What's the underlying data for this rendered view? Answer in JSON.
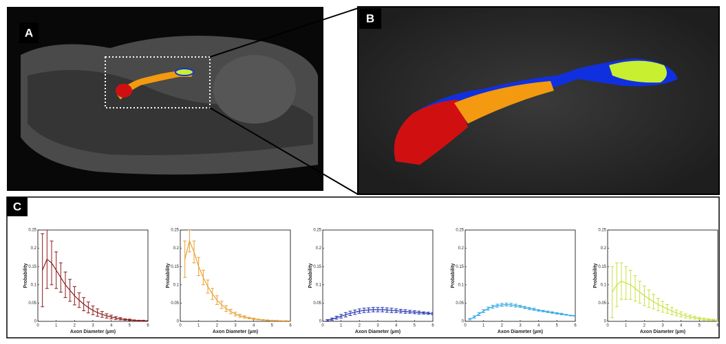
{
  "panels": {
    "a": "A",
    "b": "B",
    "c": "C"
  },
  "chart_data": [
    {
      "type": "line",
      "color": "#8b1a1a",
      "xlabel": "Axon Diameter (µm)",
      "ylabel": "Probability",
      "xlim": [
        0,
        6
      ],
      "xticks": [
        0,
        1,
        2,
        3,
        4,
        5,
        6
      ],
      "ylim": [
        0,
        0.25
      ],
      "yticks": [
        0,
        0.05,
        0.1,
        0.15,
        0.2,
        0.25
      ],
      "x": [
        0.25,
        0.5,
        0.75,
        1,
        1.25,
        1.5,
        1.75,
        2,
        2.25,
        2.5,
        2.75,
        3,
        3.25,
        3.5,
        3.75,
        4,
        4.25,
        4.5,
        4.75,
        5,
        5.25,
        5.5,
        5.75,
        6
      ],
      "values": [
        0.14,
        0.17,
        0.16,
        0.14,
        0.12,
        0.1,
        0.085,
        0.07,
        0.058,
        0.047,
        0.038,
        0.03,
        0.024,
        0.019,
        0.015,
        0.012,
        0.009,
        0.007,
        0.005,
        0.004,
        0.003,
        0.002,
        0.002,
        0.001
      ],
      "errors": [
        0.1,
        0.08,
        0.06,
        0.05,
        0.04,
        0.035,
        0.03,
        0.025,
        0.02,
        0.018,
        0.015,
        0.012,
        0.01,
        0.008,
        0.006,
        0.005,
        0.004,
        0.003,
        0.002,
        0.002,
        0.001,
        0.001,
        0.001,
        0.001
      ]
    },
    {
      "type": "line",
      "color": "#e8a030",
      "xlabel": "Axon Diameter (µm)",
      "ylabel": "Probability",
      "xlim": [
        0,
        6
      ],
      "xticks": [
        0,
        1,
        2,
        3,
        4,
        5,
        6
      ],
      "ylim": [
        0,
        0.25
      ],
      "yticks": [
        0,
        0.05,
        0.1,
        0.15,
        0.2,
        0.25
      ],
      "x": [
        0.25,
        0.5,
        0.75,
        1,
        1.25,
        1.5,
        1.75,
        2,
        2.25,
        2.5,
        2.75,
        3,
        3.25,
        3.5,
        3.75,
        4,
        4.25,
        4.5,
        4.75,
        5,
        5.25,
        5.5,
        5.75,
        6
      ],
      "values": [
        0.17,
        0.22,
        0.19,
        0.15,
        0.12,
        0.095,
        0.075,
        0.058,
        0.045,
        0.035,
        0.027,
        0.02,
        0.015,
        0.012,
        0.009,
        0.007,
        0.005,
        0.004,
        0.003,
        0.002,
        0.002,
        0.001,
        0.001,
        0.001
      ],
      "errors": [
        0.05,
        0.03,
        0.03,
        0.025,
        0.02,
        0.018,
        0.015,
        0.012,
        0.01,
        0.008,
        0.006,
        0.005,
        0.004,
        0.003,
        0.002,
        0.002,
        0.001,
        0.001,
        0.001,
        0.001,
        0.001,
        0.001,
        0.001,
        0.001
      ]
    },
    {
      "type": "line",
      "color": "#2030b0",
      "xlabel": "Axon Diameter (µm)",
      "ylabel": "Probability",
      "xlim": [
        0,
        6
      ],
      "xticks": [
        0,
        1,
        2,
        3,
        4,
        5,
        6
      ],
      "ylim": [
        0,
        0.25
      ],
      "yticks": [
        0,
        0.05,
        0.1,
        0.15,
        0.2,
        0.25
      ],
      "x": [
        0.25,
        0.5,
        0.75,
        1,
        1.25,
        1.5,
        1.75,
        2,
        2.25,
        2.5,
        2.75,
        3,
        3.25,
        3.5,
        3.75,
        4,
        4.25,
        4.5,
        4.75,
        5,
        5.25,
        5.5,
        5.75,
        6
      ],
      "values": [
        0.003,
        0.006,
        0.01,
        0.014,
        0.018,
        0.022,
        0.025,
        0.028,
        0.03,
        0.031,
        0.032,
        0.032,
        0.032,
        0.031,
        0.03,
        0.029,
        0.028,
        0.027,
        0.026,
        0.025,
        0.024,
        0.023,
        0.022,
        0.021
      ],
      "errors": [
        0.002,
        0.003,
        0.004,
        0.005,
        0.006,
        0.006,
        0.006,
        0.006,
        0.006,
        0.006,
        0.006,
        0.006,
        0.006,
        0.006,
        0.006,
        0.005,
        0.005,
        0.005,
        0.004,
        0.004,
        0.004,
        0.003,
        0.003,
        0.003
      ]
    },
    {
      "type": "line",
      "color": "#30a8e0",
      "xlabel": "Axon Diameter (µm)",
      "ylabel": "Probability",
      "xlim": [
        0,
        6
      ],
      "xticks": [
        0,
        1,
        2,
        3,
        4,
        5,
        6
      ],
      "ylim": [
        0,
        0.25
      ],
      "yticks": [
        0,
        0.05,
        0.1,
        0.15,
        0.2,
        0.25
      ],
      "x": [
        0.25,
        0.5,
        0.75,
        1,
        1.25,
        1.5,
        1.75,
        2,
        2.25,
        2.5,
        2.75,
        3,
        3.25,
        3.5,
        3.75,
        4,
        4.25,
        4.5,
        4.75,
        5,
        5.25,
        5.5,
        5.75,
        6
      ],
      "values": [
        0.006,
        0.012,
        0.02,
        0.028,
        0.035,
        0.04,
        0.043,
        0.045,
        0.046,
        0.045,
        0.043,
        0.041,
        0.038,
        0.035,
        0.033,
        0.03,
        0.028,
        0.026,
        0.024,
        0.022,
        0.02,
        0.018,
        0.016,
        0.015
      ],
      "errors": [
        0.002,
        0.003,
        0.004,
        0.004,
        0.004,
        0.004,
        0.004,
        0.004,
        0.004,
        0.004,
        0.004,
        0.003,
        0.003,
        0.003,
        0.003,
        0.002,
        0.002,
        0.002,
        0.002,
        0.002,
        0.002,
        0.001,
        0.001,
        0.001
      ]
    },
    {
      "type": "line",
      "color": "#c8e040",
      "xlabel": "Axon Diameter (µm)",
      "ylabel": "Probability",
      "xlim": [
        0,
        6
      ],
      "xticks": [
        0,
        1,
        2,
        3,
        4,
        5,
        6
      ],
      "ylim": [
        0,
        0.25
      ],
      "yticks": [
        0,
        0.05,
        0.1,
        0.15,
        0.2,
        0.25
      ],
      "x": [
        0.25,
        0.5,
        0.75,
        1,
        1.25,
        1.5,
        1.75,
        2,
        2.25,
        2.5,
        2.75,
        3,
        3.25,
        3.5,
        3.75,
        4,
        4.25,
        4.5,
        4.75,
        5,
        5.25,
        5.5,
        5.75,
        6
      ],
      "values": [
        0.08,
        0.1,
        0.11,
        0.105,
        0.1,
        0.09,
        0.08,
        0.07,
        0.062,
        0.054,
        0.046,
        0.04,
        0.034,
        0.028,
        0.023,
        0.019,
        0.015,
        0.012,
        0.01,
        0.008,
        0.006,
        0.005,
        0.004,
        0.003
      ],
      "errors": [
        0.07,
        0.06,
        0.05,
        0.045,
        0.04,
        0.035,
        0.03,
        0.027,
        0.024,
        0.02,
        0.017,
        0.015,
        0.012,
        0.01,
        0.008,
        0.007,
        0.006,
        0.005,
        0.004,
        0.003,
        0.003,
        0.002,
        0.002,
        0.002
      ]
    }
  ]
}
